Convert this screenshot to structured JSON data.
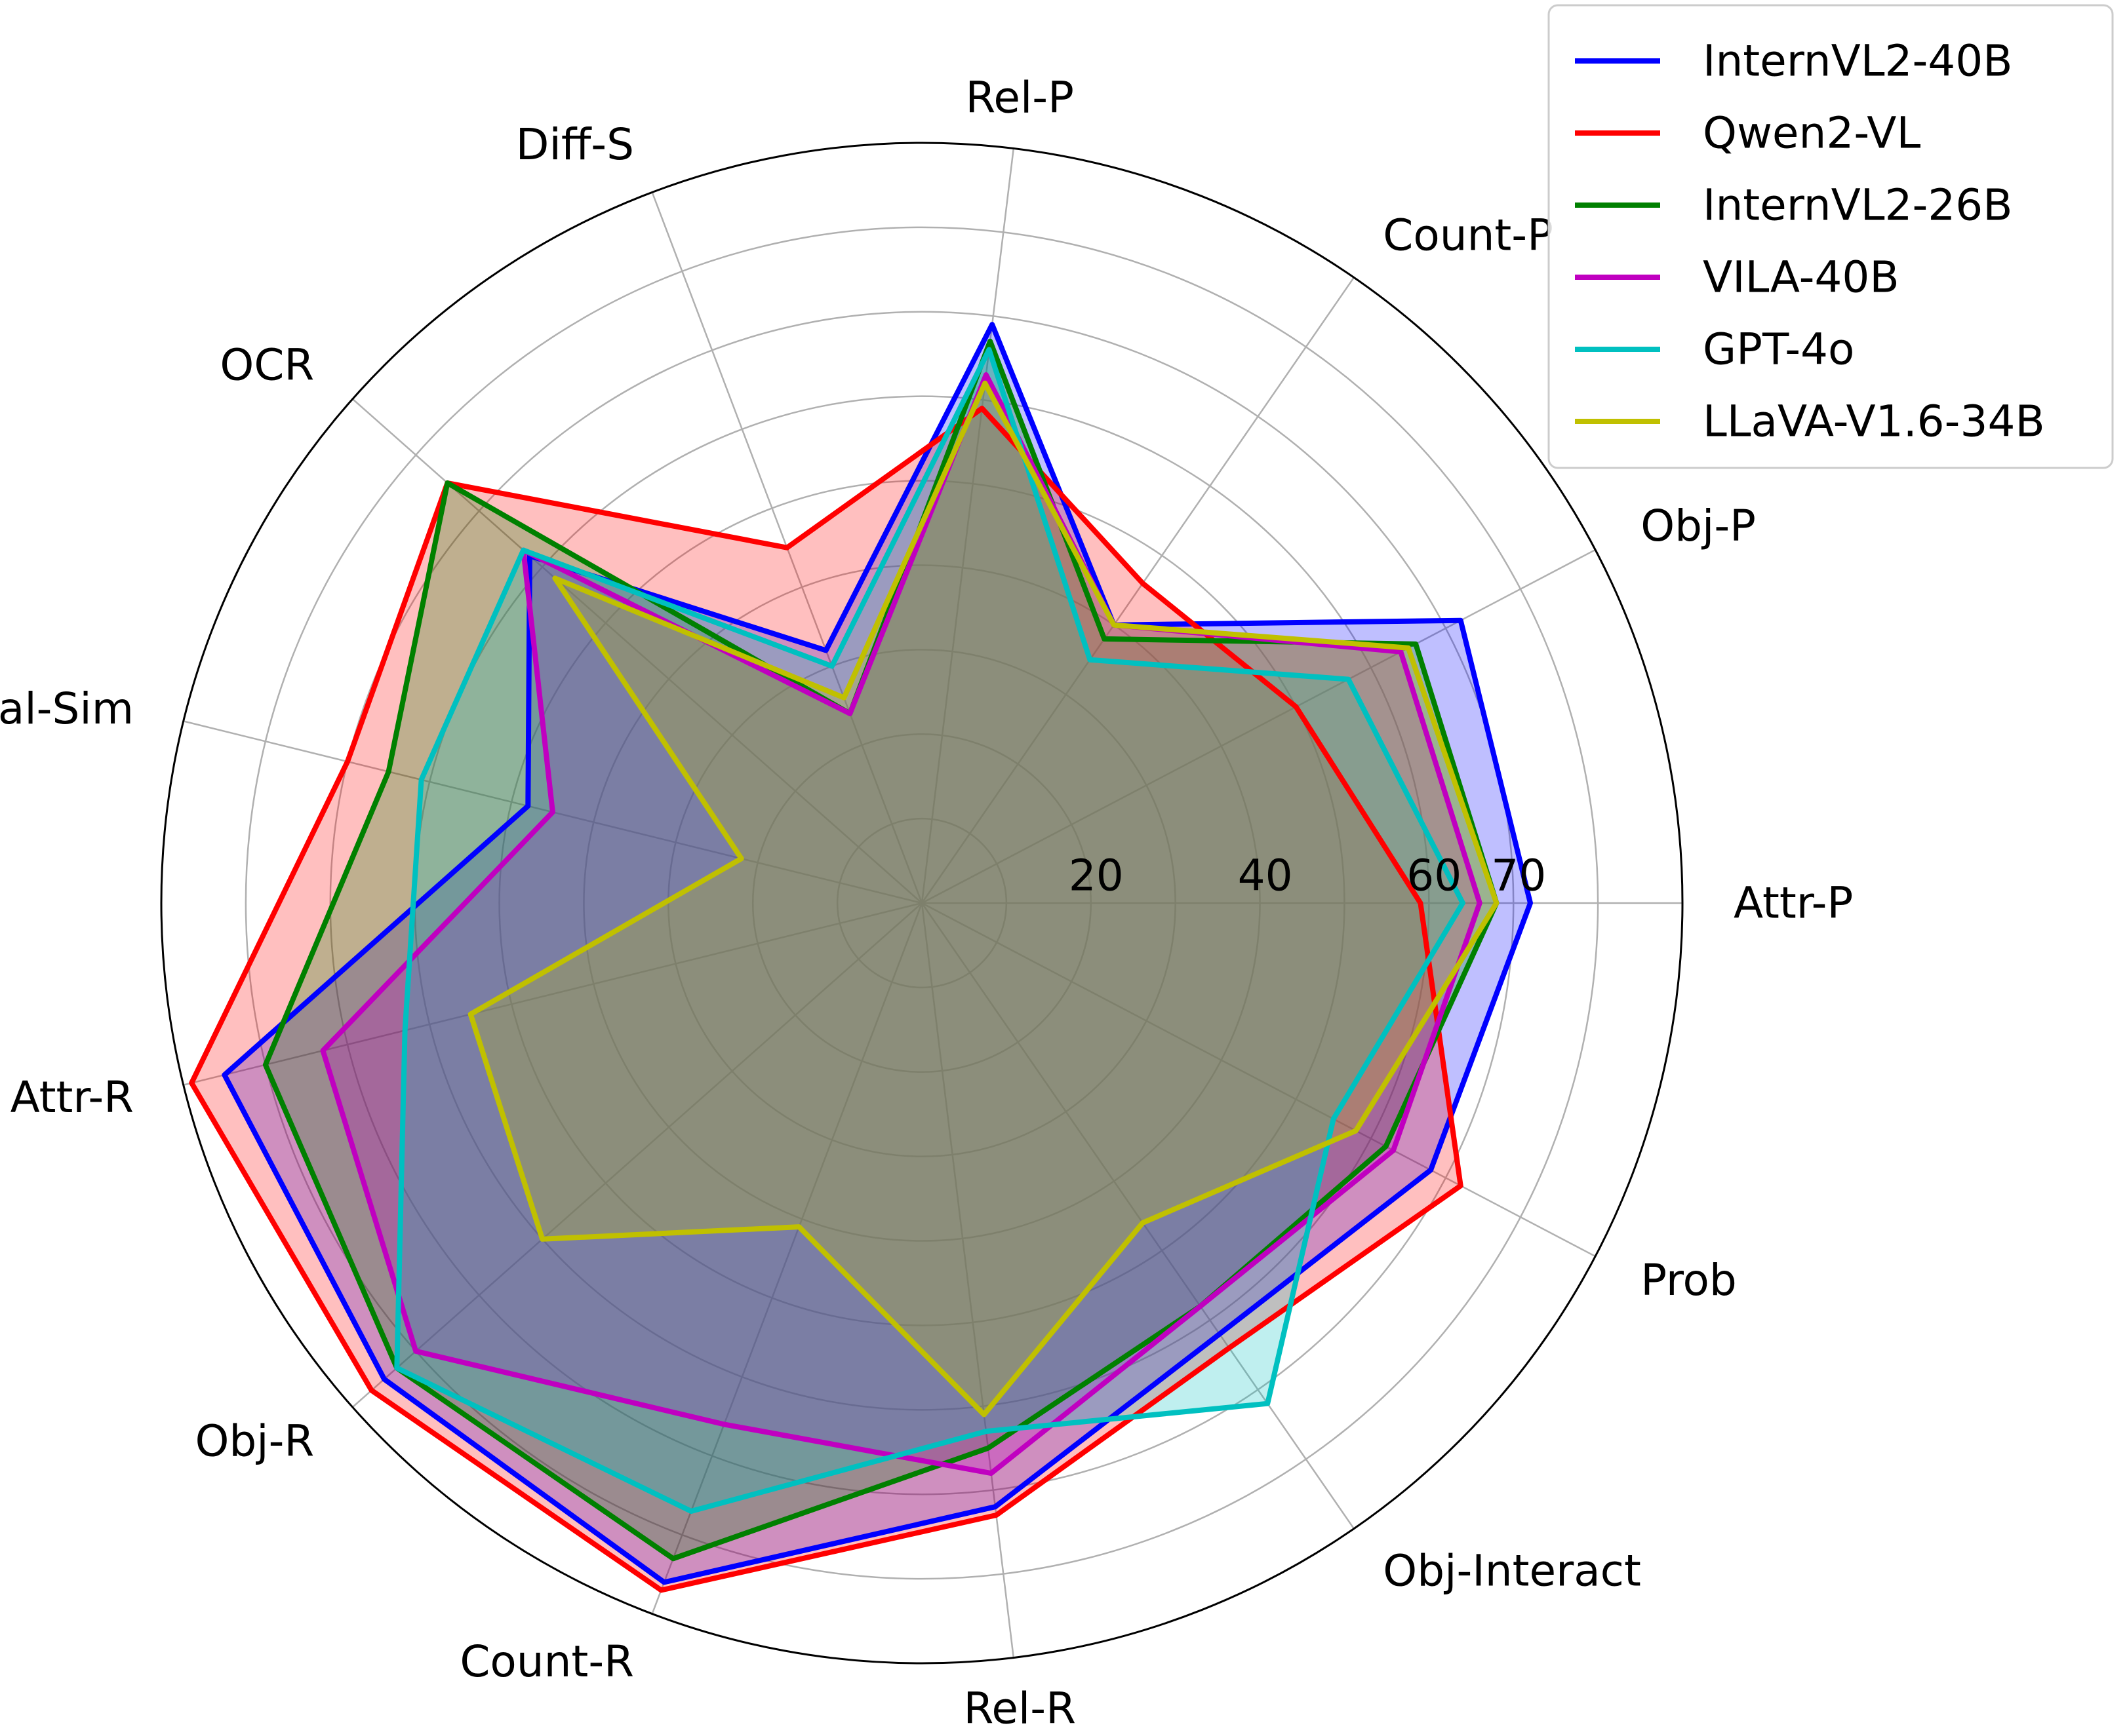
{
  "chart_data": {
    "type": "radar",
    "title": "",
    "axes": [
      "Attr-P",
      "Obj-P",
      "Count-P",
      "Rel-P",
      "Diff-S",
      "OCR",
      "Visual-Sim",
      "Attr-R",
      "Obj-R",
      "Count-R",
      "Rel-R",
      "Obj-Interact",
      "Prob"
    ],
    "radial_ticks": [
      20,
      40,
      60,
      70
    ],
    "rlim": [
      0,
      90
    ],
    "grid": true,
    "legend_position": "top-right",
    "series": [
      {
        "name": "InternVL2-40B",
        "color": "#0000ff",
        "values": [
          72,
          72,
          40,
          69,
          32,
          62,
          48,
          85,
          85,
          86,
          72,
          62,
          68
        ]
      },
      {
        "name": "Qwen2-VL",
        "color": "#ff0000",
        "values": [
          59,
          50,
          46,
          59,
          45,
          75,
          70,
          89,
          87,
          87,
          73,
          64,
          72
        ]
      },
      {
        "name": "InternVL2-26B",
        "color": "#008000",
        "values": [
          68,
          66,
          38,
          67,
          24,
          75,
          65,
          80,
          83,
          83,
          65,
          58,
          62
        ]
      },
      {
        "name": "VILA-40B",
        "color": "#c000c0",
        "values": [
          66,
          64,
          40,
          63,
          24,
          63,
          45,
          73,
          80,
          66,
          68,
          58,
          63
        ]
      },
      {
        "name": "GPT-4o",
        "color": "#00c0c0",
        "values": [
          64,
          57,
          35,
          66,
          30,
          63,
          61,
          63,
          83,
          77,
          63,
          72,
          55
        ]
      },
      {
        "name": "LLaVA-V1.6-34B",
        "color": "#c0c000",
        "values": [
          68,
          65,
          40,
          62,
          26,
          58,
          22,
          55,
          60,
          41,
          61,
          46,
          58
        ]
      }
    ]
  }
}
